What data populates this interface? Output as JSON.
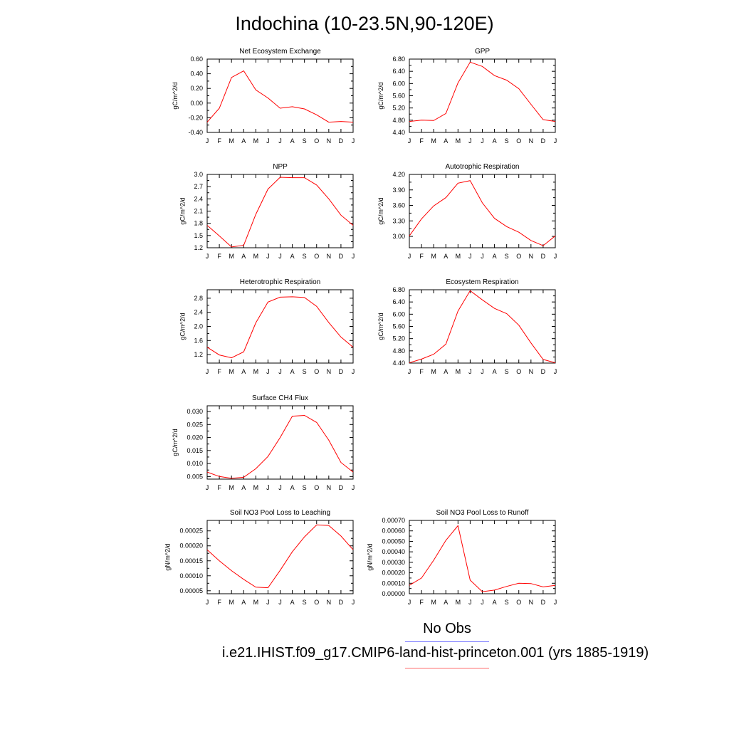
{
  "title": "Indochina (10-23.5N,90-120E)",
  "legend": {
    "obs_label": "No Obs",
    "obs_color": "#6a6aff",
    "case_label": "i.e21.IHIST.f09_g17.CMIP6-land-hist-princeton.001 (yrs 1885-1919)",
    "case_color": "#ff6a6a"
  },
  "chart_data": [
    {
      "type": "line",
      "title": "Net Ecosystem Exchange",
      "ylabel": "gC/m^2/d",
      "x": [
        "J",
        "F",
        "M",
        "A",
        "M",
        "J",
        "J",
        "A",
        "S",
        "O",
        "N",
        "D",
        "J"
      ],
      "yticks": [
        "0.60",
        "0.40",
        "0.20",
        "0.00",
        "-0.20",
        "-0.40"
      ],
      "ylim": [
        -0.4,
        0.6
      ],
      "series": [
        {
          "values": [
            -0.26,
            -0.07,
            0.35,
            0.44,
            0.18,
            0.07,
            -0.07,
            -0.05,
            -0.08,
            -0.16,
            -0.26,
            -0.25,
            -0.26
          ],
          "color": "#ff0000"
        }
      ]
    },
    {
      "type": "line",
      "title": "GPP",
      "ylabel": "gC/m^2/d",
      "x": [
        "J",
        "F",
        "M",
        "A",
        "M",
        "J",
        "J",
        "A",
        "S",
        "O",
        "N",
        "D",
        "J"
      ],
      "yticks": [
        "6.80",
        "6.40",
        "6.00",
        "5.60",
        "5.20",
        "4.80",
        "4.40"
      ],
      "ylim": [
        4.4,
        6.8
      ],
      "series": [
        {
          "values": [
            4.76,
            4.8,
            4.79,
            5.02,
            6.02,
            6.7,
            6.56,
            6.26,
            6.11,
            5.83,
            5.32,
            4.82,
            4.76
          ],
          "color": "#ff0000"
        }
      ]
    },
    {
      "type": "line",
      "title": "NPP",
      "ylabel": "gC/m^2/d",
      "x": [
        "J",
        "F",
        "M",
        "A",
        "M",
        "J",
        "J",
        "A",
        "S",
        "O",
        "N",
        "D",
        "J"
      ],
      "yticks": [
        "3.0",
        "2.7",
        "2.4",
        "2.1",
        "1.8",
        "1.5",
        "1.2"
      ],
      "ylim": [
        1.2,
        3.0
      ],
      "series": [
        {
          "values": [
            1.75,
            1.49,
            1.22,
            1.26,
            2.02,
            2.64,
            2.93,
            2.92,
            2.92,
            2.74,
            2.4,
            2.0,
            1.75
          ],
          "color": "#ff0000"
        }
      ]
    },
    {
      "type": "line",
      "title": "Autotrophic Respiration",
      "ylabel": "gC/m^2/d",
      "x": [
        "J",
        "F",
        "M",
        "A",
        "M",
        "J",
        "J",
        "A",
        "S",
        "O",
        "N",
        "D",
        "J"
      ],
      "yticks": [
        "4.20",
        "3.90",
        "3.60",
        "3.30",
        "3.00"
      ],
      "ylim": [
        2.78,
        4.2
      ],
      "series": [
        {
          "values": [
            3.01,
            3.34,
            3.59,
            3.75,
            4.03,
            4.08,
            3.65,
            3.35,
            3.19,
            3.08,
            2.92,
            2.82,
            3.01
          ],
          "color": "#ff0000"
        }
      ]
    },
    {
      "type": "line",
      "title": "Heterotrophic Respiration",
      "ylabel": "gC/m^2/d",
      "x": [
        "J",
        "F",
        "M",
        "A",
        "M",
        "J",
        "J",
        "A",
        "S",
        "O",
        "N",
        "D",
        "J"
      ],
      "yticks": [
        "2.8",
        "2.4",
        "2.0",
        "1.6",
        "1.2"
      ],
      "ylim": [
        0.96,
        3.04
      ],
      "series": [
        {
          "values": [
            1.41,
            1.19,
            1.11,
            1.28,
            2.1,
            2.69,
            2.83,
            2.84,
            2.82,
            2.57,
            2.11,
            1.7,
            1.41
          ],
          "color": "#ff0000"
        }
      ]
    },
    {
      "type": "line",
      "title": "Ecosystem Respiration",
      "ylabel": "gC/m^2/d",
      "x": [
        "J",
        "F",
        "M",
        "A",
        "M",
        "J",
        "J",
        "A",
        "S",
        "O",
        "N",
        "D",
        "J"
      ],
      "yticks": [
        "6.80",
        "6.40",
        "6.00",
        "5.60",
        "5.20",
        "4.80",
        "4.40"
      ],
      "ylim": [
        4.4,
        6.8
      ],
      "series": [
        {
          "values": [
            4.41,
            4.53,
            4.69,
            5.02,
            6.1,
            6.77,
            6.47,
            6.19,
            6.02,
            5.64,
            5.06,
            4.52,
            4.41
          ],
          "color": "#ff0000"
        }
      ]
    },
    {
      "type": "line",
      "title": "Surface CH4 Flux",
      "ylabel": "gC/m^2/d",
      "x": [
        "J",
        "F",
        "M",
        "A",
        "M",
        "J",
        "J",
        "A",
        "S",
        "O",
        "N",
        "D",
        "J"
      ],
      "yticks": [
        "0.030",
        "0.025",
        "0.020",
        "0.015",
        "0.010",
        "0.005"
      ],
      "ylim": [
        0.004,
        0.0322
      ],
      "series": [
        {
          "values": [
            0.0067,
            0.005,
            0.0043,
            0.0047,
            0.008,
            0.0127,
            0.02,
            0.0282,
            0.0285,
            0.0258,
            0.019,
            0.0104,
            0.0067
          ],
          "color": "#ff0000"
        }
      ]
    },
    {
      "type": "line",
      "title": "Soil NO3 Pool Loss to Leaching",
      "ylabel": "gN/m^2/d",
      "x": [
        "J",
        "F",
        "M",
        "A",
        "M",
        "J",
        "J",
        "A",
        "S",
        "O",
        "N",
        "D",
        "J"
      ],
      "yticks": [
        "0.00025",
        "0.00020",
        "0.00015",
        "0.00010",
        "0.00005"
      ],
      "ylim": [
        4e-05,
        0.000285
      ],
      "series": [
        {
          "values": [
            0.000187,
            0.00015,
            0.000117,
            8.8e-05,
            6.2e-05,
            6e-05,
            0.000118,
            0.00018,
            0.00023,
            0.00027,
            0.000268,
            0.000233,
            0.000187
          ],
          "color": "#ff0000"
        }
      ]
    },
    {
      "type": "line",
      "title": "Soil NO3 Pool Loss to Runoff",
      "ylabel": "gN/m^2/d",
      "x": [
        "J",
        "F",
        "M",
        "A",
        "M",
        "J",
        "J",
        "A",
        "S",
        "O",
        "N",
        "D",
        "J"
      ],
      "yticks": [
        "0.00070",
        "0.00060",
        "0.00050",
        "0.00040",
        "0.00030",
        "0.00020",
        "0.00010",
        "0.00000"
      ],
      "ylim": [
        0.0,
        0.0007
      ],
      "series": [
        {
          "values": [
            8e-05,
            0.00015,
            0.00032,
            0.00051,
            0.00065,
            0.00013,
            2e-05,
            3.5e-05,
            7e-05,
            0.0001,
            9.7e-05,
            6.5e-05,
            8e-05
          ],
          "color": "#ff0000"
        }
      ]
    }
  ]
}
